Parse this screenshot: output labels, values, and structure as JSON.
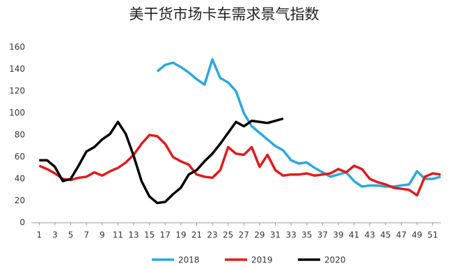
{
  "chart_data": {
    "type": "line",
    "title": "美干货市场卡车需求景气指数",
    "x": [
      1,
      2,
      3,
      4,
      5,
      6,
      7,
      8,
      9,
      10,
      11,
      12,
      13,
      14,
      15,
      16,
      17,
      18,
      19,
      20,
      21,
      22,
      23,
      24,
      25,
      26,
      27,
      28,
      29,
      30,
      31,
      32,
      33,
      34,
      35,
      36,
      37,
      38,
      39,
      40,
      41,
      42,
      43,
      44,
      45,
      46,
      47,
      48,
      49,
      50,
      51,
      52
    ],
    "xlim": [
      0,
      52
    ],
    "xticks": [
      1,
      3,
      5,
      7,
      9,
      11,
      13,
      15,
      17,
      19,
      21,
      23,
      25,
      27,
      29,
      31,
      33,
      35,
      37,
      39,
      41,
      43,
      45,
      47,
      49,
      51
    ],
    "ylim": [
      0,
      160
    ],
    "yticks": [
      0,
      20,
      40,
      60,
      80,
      100,
      120,
      140,
      160
    ],
    "grid": false,
    "legend": "bottom",
    "series": [
      {
        "name": "2018",
        "color": "#2aa8df",
        "values": [
          null,
          null,
          null,
          null,
          null,
          null,
          null,
          null,
          null,
          null,
          null,
          null,
          null,
          null,
          null,
          138,
          144,
          146,
          142,
          137,
          131,
          126,
          149,
          132,
          128,
          120,
          100,
          88,
          82,
          76,
          70,
          66,
          57,
          54,
          55,
          50,
          46,
          42,
          44,
          46,
          38,
          33,
          34,
          34,
          33,
          33,
          34,
          35,
          47,
          40,
          40,
          42
        ]
      },
      {
        "name": "2019",
        "color": "#e21a1a",
        "values": [
          52,
          49,
          45,
          40,
          39,
          41,
          42,
          46,
          43,
          47,
          50,
          55,
          62,
          72,
          80,
          79,
          72,
          60,
          56,
          53,
          44,
          42,
          41,
          48,
          69,
          63,
          62,
          69,
          51,
          62,
          48,
          43,
          44,
          44,
          45,
          43,
          44,
          45,
          49,
          46,
          52,
          49,
          40,
          37,
          35,
          32,
          31,
          30,
          25,
          42,
          45,
          44
        ]
      },
      {
        "name": "2020",
        "color": "#000000",
        "values": [
          57,
          57,
          51,
          38,
          40,
          52,
          65,
          69,
          76,
          81,
          92,
          81,
          61,
          38,
          24,
          18,
          19,
          26,
          32,
          44,
          48,
          56,
          63,
          72,
          82,
          92,
          88,
          93,
          92,
          91,
          93,
          95,
          null,
          null,
          null,
          null,
          null,
          null,
          null,
          null,
          null,
          null,
          null,
          null,
          null,
          null,
          null,
          null,
          null,
          null,
          null,
          null
        ]
      }
    ]
  }
}
